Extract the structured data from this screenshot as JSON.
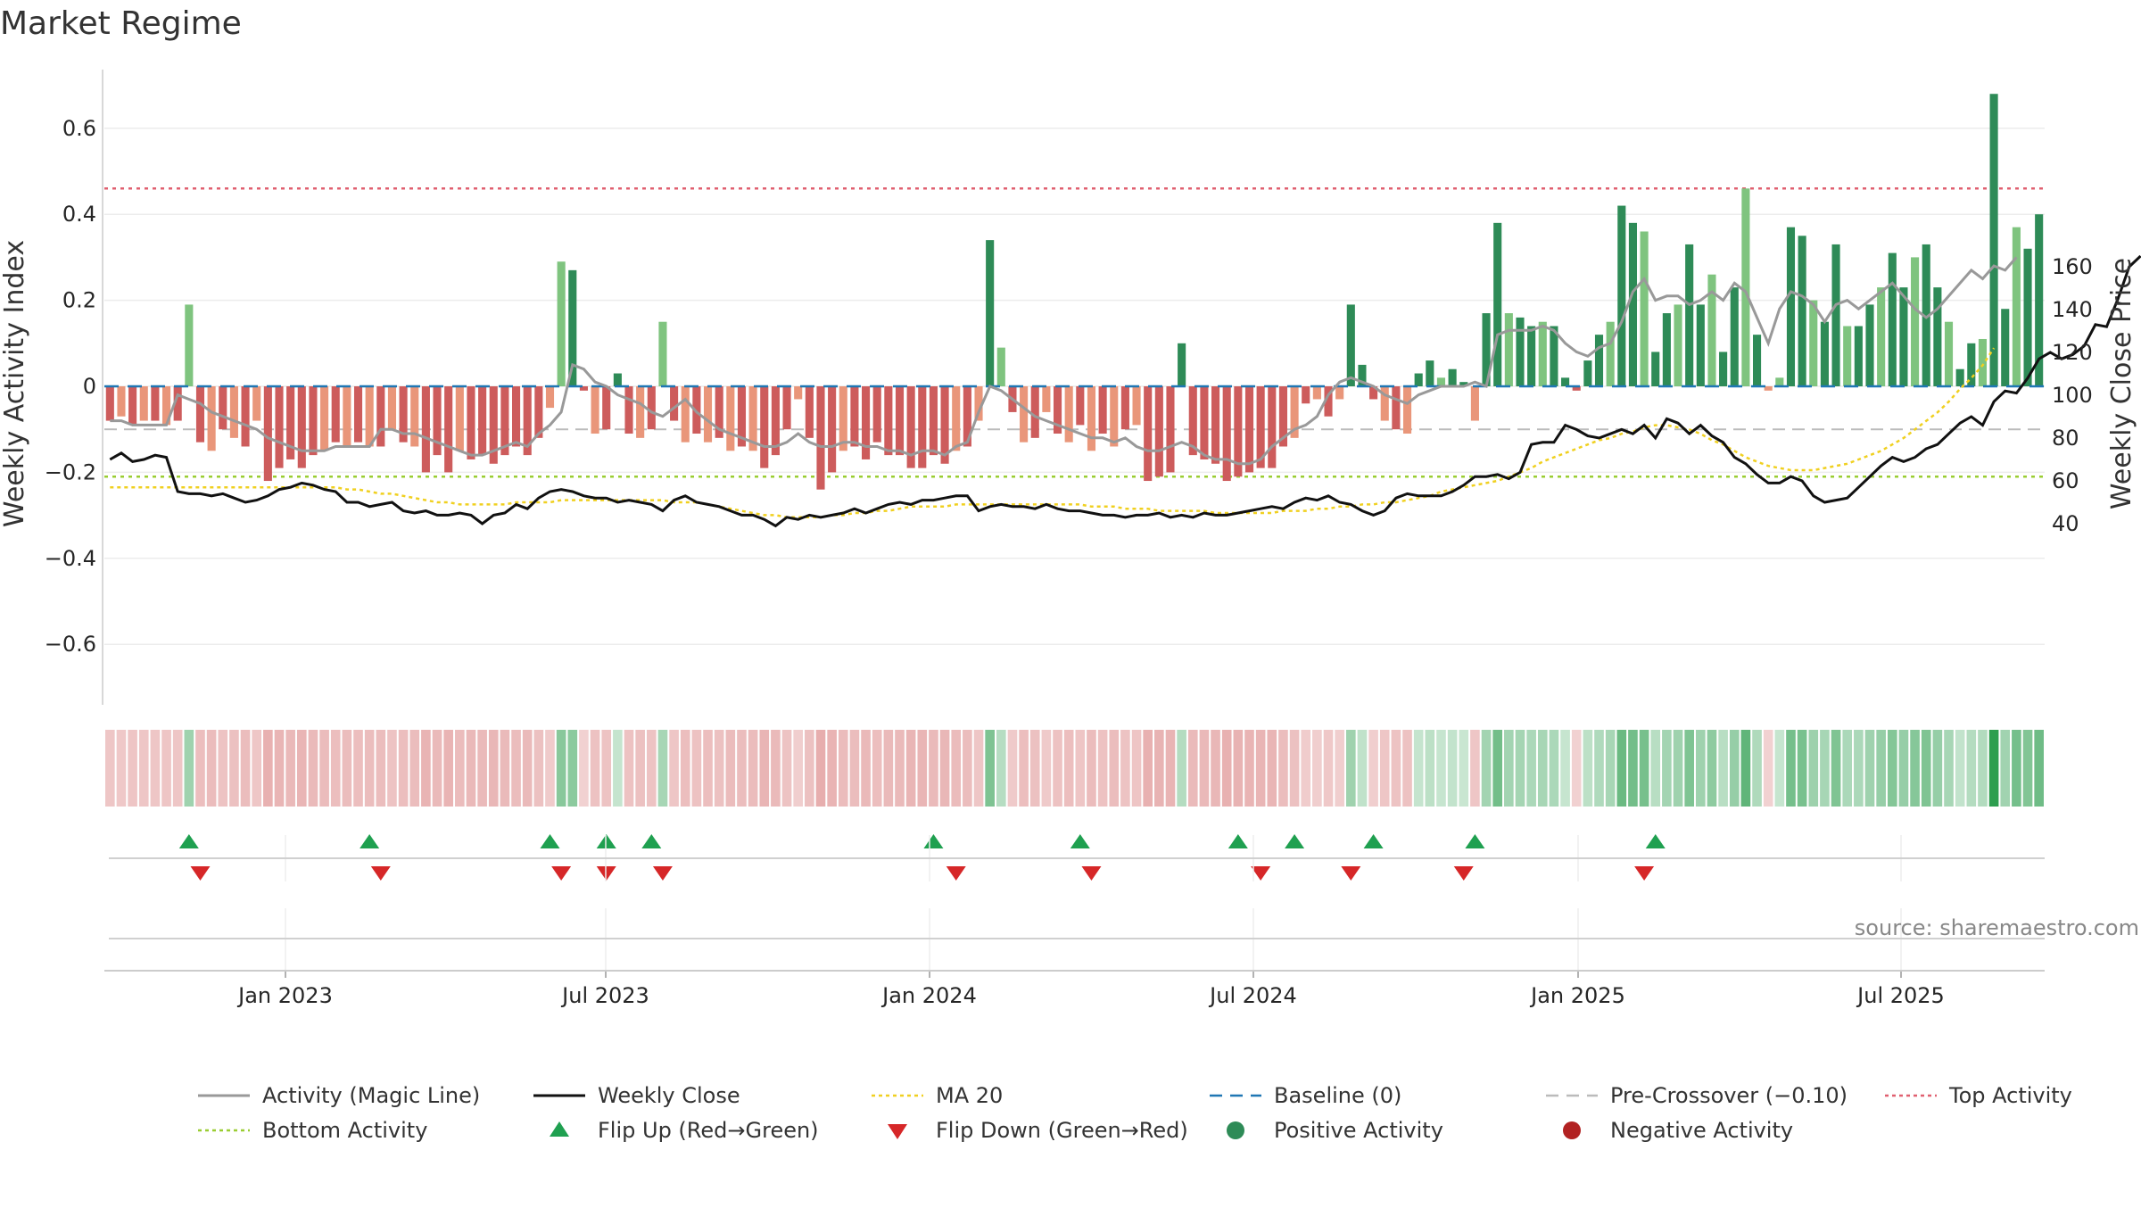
{
  "chart_data": {
    "type": "bar",
    "title": "Market Regime",
    "ylabel": "Weekly Activity Index",
    "y2label": "Weekly Close Price",
    "ylim": [
      -0.73,
      0.73
    ],
    "y2lim": [
      35,
      172
    ],
    "yticks": [
      "0.6",
      "0.4",
      "0.2",
      "0",
      "−0.2",
      "−0.4",
      "−0.6"
    ],
    "y2ticks": [
      "160",
      "140",
      "120",
      "100",
      "80",
      "60",
      "40"
    ],
    "xticks": [
      "Jan 2023",
      "Jul 2023",
      "Jan 2024",
      "Jul 2024",
      "Jan 2025",
      "Jul 2025"
    ],
    "x_range": [
      "2022-09-26",
      "2025-09-22"
    ],
    "grid": true,
    "reference_lines": {
      "top_activity": 0.46,
      "pre_crossover": -0.1,
      "bottom_activity": -0.21,
      "baseline": 0
    },
    "colors": {
      "strong_positive": "#2e8b57",
      "weak_positive": "#7fc47f",
      "strong_negative": "#cd5c5c",
      "weak_negative": "#e9967a",
      "magic_line": "#999999",
      "close": "#111111",
      "ma20": "#f0d020",
      "baseline": "#1f77b4",
      "pre_crossover": "#bbbbbb",
      "top_activity": "#e06070",
      "bottom_activity": "#9acd32",
      "flip_up": "#1fa050",
      "flip_down": "#d62728"
    },
    "weeks": 156,
    "activity": [
      -0.08,
      -0.07,
      -0.09,
      -0.08,
      -0.08,
      -0.09,
      -0.08,
      0.19,
      -0.13,
      -0.15,
      -0.1,
      -0.12,
      -0.14,
      -0.08,
      -0.22,
      -0.19,
      -0.17,
      -0.19,
      -0.16,
      -0.15,
      -0.13,
      -0.14,
      -0.13,
      -0.14,
      -0.14,
      -0.1,
      -0.13,
      -0.14,
      -0.2,
      -0.16,
      -0.2,
      -0.15,
      -0.17,
      -0.16,
      -0.18,
      -0.16,
      -0.14,
      -0.16,
      -0.12,
      -0.05,
      0.29,
      0.27,
      -0.01,
      -0.11,
      -0.1,
      0.03,
      -0.11,
      -0.12,
      -0.1,
      0.15,
      -0.08,
      -0.13,
      -0.11,
      -0.13,
      -0.12,
      -0.15,
      -0.14,
      -0.15,
      -0.19,
      -0.16,
      -0.1,
      -0.03,
      -0.12,
      -0.24,
      -0.2,
      -0.15,
      -0.14,
      -0.17,
      -0.13,
      -0.16,
      -0.16,
      -0.19,
      -0.19,
      -0.16,
      -0.18,
      -0.15,
      -0.14,
      -0.08,
      0.34,
      0.09,
      -0.06,
      -0.13,
      -0.12,
      -0.06,
      -0.11,
      -0.13,
      -0.09,
      -0.15,
      -0.11,
      -0.14,
      -0.1,
      -0.09,
      -0.22,
      -0.21,
      -0.2,
      0.1,
      -0.16,
      -0.17,
      -0.18,
      -0.22,
      -0.21,
      -0.2,
      -0.19,
      -0.19,
      -0.14,
      -0.12,
      -0.04,
      -0.03,
      -0.07,
      -0.03,
      0.19,
      0.05,
      -0.03,
      -0.08,
      -0.1,
      -0.11,
      0.03,
      0.06,
      0.02,
      0.04,
      0.01,
      -0.08,
      0.17,
      0.38,
      0.17,
      0.16,
      0.14,
      0.15,
      0.14,
      0.02,
      -0.01,
      0.06,
      0.12,
      0.15,
      0.42,
      0.38,
      0.36,
      0.08,
      0.17,
      0.19,
      0.33,
      0.19,
      0.26,
      0.08,
      0.23,
      0.46,
      0.12,
      -0.01,
      0.02,
      0.37,
      0.35,
      0.2,
      0.15,
      0.33,
      0.14,
      0.14,
      0.19
    ],
    "activity_tail": [
      0.23,
      0.31,
      0.23,
      0.3,
      0.33,
      0.23,
      0.15,
      0.04,
      0.1,
      0.11,
      0.68,
      0.18,
      0.37,
      0.32,
      0.4
    ],
    "magic_line": [
      -0.08,
      -0.08,
      -0.09,
      -0.09,
      -0.09,
      -0.09,
      -0.02,
      -0.03,
      -0.04,
      -0.06,
      -0.07,
      -0.08,
      -0.09,
      -0.1,
      -0.12,
      -0.13,
      -0.14,
      -0.15,
      -0.15,
      -0.15,
      -0.14,
      -0.14,
      -0.14,
      -0.14,
      -0.1,
      -0.1,
      -0.11,
      -0.11,
      -0.12,
      -0.13,
      -0.14,
      -0.15,
      -0.16,
      -0.16,
      -0.15,
      -0.14,
      -0.13,
      -0.14,
      -0.11,
      -0.09,
      -0.06,
      0.05,
      0.04,
      0.01,
      0.0,
      -0.02,
      -0.03,
      -0.04,
      -0.06,
      -0.07,
      -0.05,
      -0.03,
      -0.06,
      -0.08,
      -0.1,
      -0.11,
      -0.12,
      -0.13,
      -0.14,
      -0.14,
      -0.13,
      -0.11,
      -0.13,
      -0.14,
      -0.14,
      -0.13,
      -0.13,
      -0.14,
      -0.14,
      -0.15,
      -0.15,
      -0.16,
      -0.15,
      -0.15,
      -0.16,
      -0.14,
      -0.13,
      -0.06,
      0.0,
      -0.01,
      -0.03,
      -0.05,
      -0.07,
      -0.08,
      -0.09,
      -0.1,
      -0.11,
      -0.12,
      -0.12,
      -0.13,
      -0.12,
      -0.14,
      -0.15,
      -0.15,
      -0.14,
      -0.13,
      -0.14,
      -0.16,
      -0.17,
      -0.17,
      -0.18,
      -0.18,
      -0.17,
      -0.14,
      -0.12,
      -0.1,
      -0.09,
      -0.07,
      -0.02,
      0.01,
      0.02,
      0.01,
      0.0,
      -0.02,
      -0.03,
      -0.04,
      -0.02,
      -0.01,
      0.0,
      0.0,
      0.0,
      0.01,
      0.0,
      0.12,
      0.13,
      0.13,
      0.13,
      0.14,
      0.13,
      0.1,
      0.08,
      0.07,
      0.09,
      0.1,
      0.15,
      0.22,
      0.25,
      0.2,
      0.21,
      0.21,
      0.19,
      0.2,
      0.22,
      0.2,
      0.24,
      0.22,
      0.16,
      0.1,
      0.18,
      0.22,
      0.21,
      0.19,
      0.15,
      0.19,
      0.2
    ],
    "magic_line_tail": [
      0.18,
      0.2,
      0.22,
      0.24,
      0.21,
      0.18,
      0.16,
      0.18,
      0.21,
      0.24,
      0.27,
      0.25,
      0.28,
      0.27,
      0.3
    ],
    "close": [
      70,
      73,
      69,
      70,
      72,
      71,
      55,
      54,
      54,
      53,
      54,
      52,
      50,
      51,
      53,
      56,
      57,
      59,
      58,
      56,
      55,
      50,
      50,
      48,
      49,
      50,
      46,
      45,
      46,
      44,
      44,
      45,
      44,
      40,
      44,
      45,
      49,
      47,
      52,
      55,
      56,
      55,
      53,
      52,
      52,
      50,
      51,
      50,
      49,
      46,
      51,
      53,
      50,
      49,
      48,
      46,
      44,
      44,
      42,
      39,
      43,
      42,
      44,
      43,
      44,
      45,
      47,
      45,
      47,
      49,
      50,
      49,
      51,
      51,
      52,
      53,
      53,
      46,
      48,
      49,
      48,
      48,
      47,
      49,
      47,
      46,
      46,
      45,
      44,
      44,
      43,
      44,
      44,
      45,
      43,
      44,
      43,
      45,
      44,
      44,
      45,
      46,
      47,
      48,
      47,
      50,
      52,
      51,
      53,
      50,
      49,
      46,
      44,
      46,
      52,
      54,
      53,
      53,
      53,
      55,
      58,
      62,
      62,
      63,
      61,
      64,
      77,
      78,
      78,
      86,
      84,
      81,
      80,
      82,
      84,
      82,
      86,
      80,
      89,
      87,
      82,
      86,
      81,
      78,
      71,
      68,
      63,
      59,
      59,
      62,
      60,
      53,
      50,
      51,
      52,
      57,
      62,
      67,
      71,
      69,
      71,
      75,
      77,
      82,
      87,
      90,
      86,
      97,
      102,
      101,
      108,
      117,
      120,
      117,
      119,
      123,
      133,
      132,
      145,
      160,
      165
    ],
    "ma20": [
      57,
      57,
      57,
      57,
      57,
      57,
      57,
      57,
      57,
      57,
      57,
      57,
      57,
      57,
      57,
      57,
      57,
      57,
      57,
      57,
      57,
      56,
      56,
      55,
      54,
      54,
      53,
      52,
      51,
      50,
      50,
      49,
      49,
      49,
      49,
      49,
      50,
      50,
      50,
      50,
      51,
      51,
      51,
      51,
      51,
      51,
      51,
      51,
      51,
      51,
      50,
      50,
      50,
      49,
      48,
      47,
      46,
      45,
      44,
      44,
      43,
      43,
      43,
      43,
      44,
      44,
      45,
      45,
      46,
      46,
      47,
      48,
      48,
      48,
      48,
      49,
      49,
      49,
      49,
      49,
      49,
      49,
      49,
      49,
      49,
      49,
      49,
      48,
      48,
      48,
      47,
      47,
      47,
      46,
      46,
      46,
      46,
      46,
      45,
      45,
      45,
      45,
      45,
      45,
      46,
      46,
      46,
      47,
      47,
      48,
      48,
      49,
      49,
      50,
      50,
      51,
      52,
      53,
      55,
      56,
      57,
      58,
      59,
      60,
      62,
      64,
      66,
      69,
      71,
      73,
      75,
      77,
      79,
      80,
      82,
      83,
      85,
      86,
      86,
      85,
      84,
      82,
      79,
      77,
      74,
      71,
      69,
      67,
      66,
      65,
      65,
      65,
      66,
      67,
      68,
      70,
      72,
      74,
      77,
      80,
      84,
      88,
      92,
      97,
      103,
      108,
      114,
      122
    ],
    "flip_up_weeks": [
      7,
      23,
      39,
      44,
      48,
      73,
      86,
      100,
      105,
      112,
      121,
      137
    ],
    "flip_down_weeks": [
      8,
      24,
      40,
      44,
      49,
      75,
      87,
      102,
      110,
      120,
      136
    ],
    "legend": [
      {
        "label": "Activity (Magic Line)",
        "style": "solid",
        "color": "#999999"
      },
      {
        "label": "Weekly Close",
        "style": "solid",
        "color": "#111111"
      },
      {
        "label": "MA 20",
        "style": "dotted",
        "color": "#f0d020"
      },
      {
        "label": "Baseline (0)",
        "style": "dashed",
        "color": "#1f77b4"
      },
      {
        "label": "Pre-Crossover (−0.10)",
        "style": "dashed",
        "color": "#bbbbbb"
      },
      {
        "label": "Top Activity",
        "style": "dotted",
        "color": "#e06070"
      },
      {
        "label": "Bottom Activity",
        "style": "dotted",
        "color": "#9acd32"
      },
      {
        "label": "Flip Up (Red→Green)",
        "style": "tri-up",
        "color": "#1fa050"
      },
      {
        "label": "Flip Down (Green→Red)",
        "style": "tri-down",
        "color": "#d62728"
      },
      {
        "label": "Positive Activity",
        "style": "dot",
        "color": "#2e8b57"
      },
      {
        "label": "Negative Activity",
        "style": "dot",
        "color": "#b22222"
      }
    ],
    "source": "source: sharemaestro.com"
  }
}
